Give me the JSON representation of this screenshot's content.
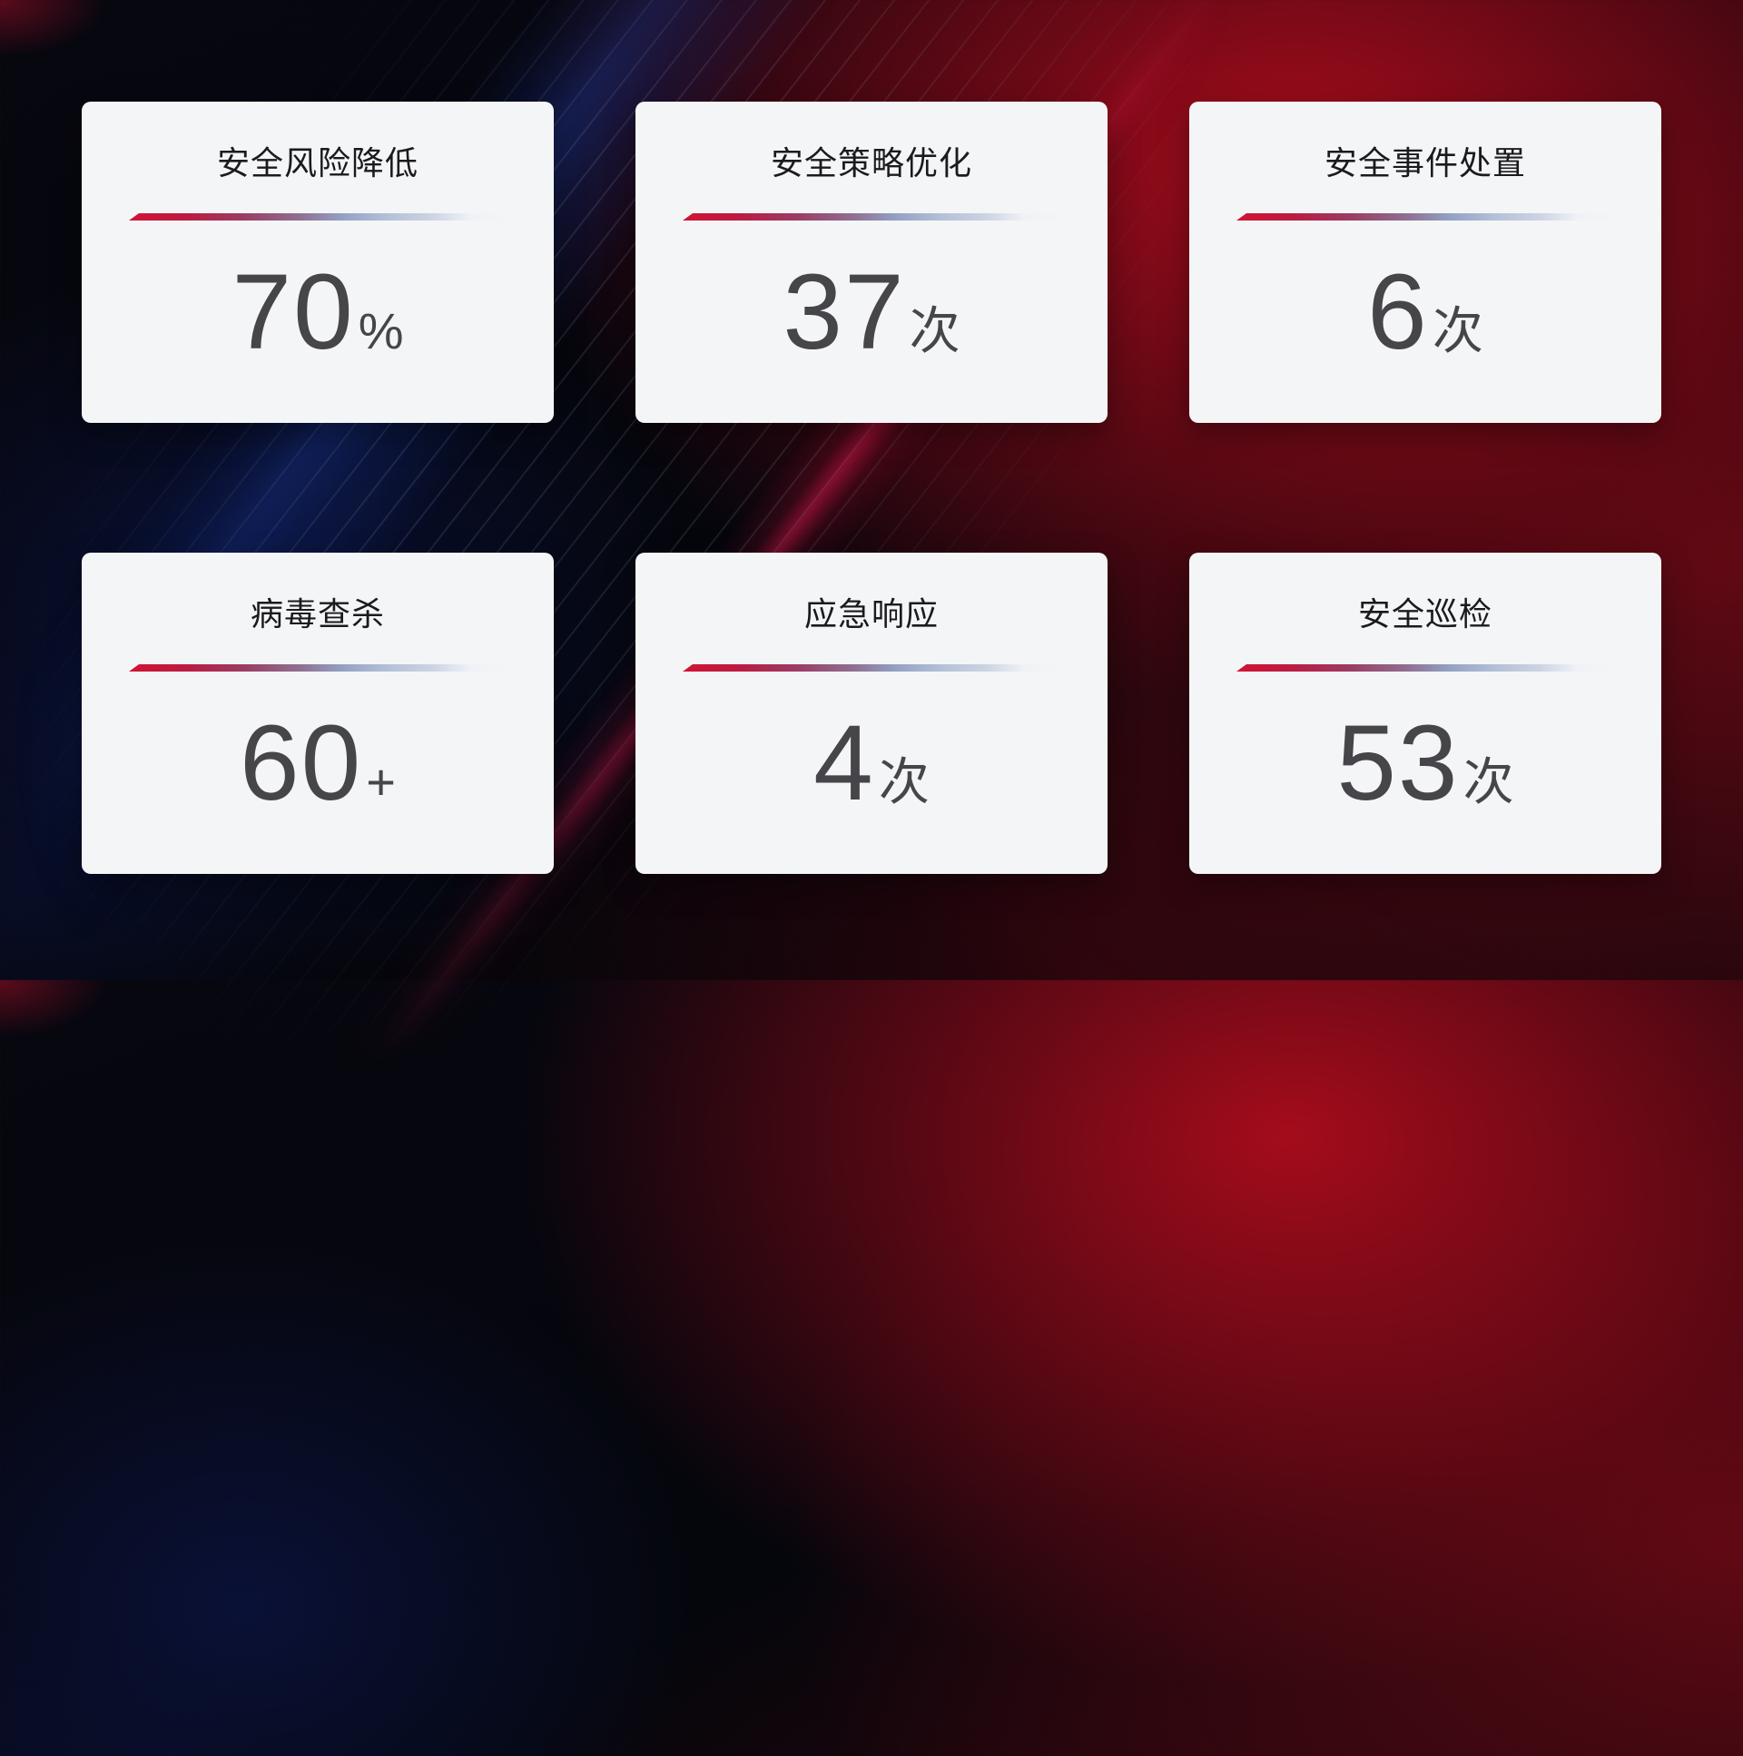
{
  "cards": [
    {
      "title": "安全风险降低",
      "value": "70",
      "unit": "%"
    },
    {
      "title": "安全策略优化",
      "value": "37",
      "unit": "次"
    },
    {
      "title": "安全事件处置",
      "value": "6",
      "unit": "次"
    },
    {
      "title": "病毒查杀",
      "value": "60",
      "unit": "+"
    },
    {
      "title": "应急响应",
      "value": "4",
      "unit": "次"
    },
    {
      "title": "安全巡检",
      "value": "53",
      "unit": "次"
    }
  ],
  "colors": {
    "card_background": "#f4f5f7",
    "title_text": "#1b1b1f",
    "value_text": "#45454a",
    "divider_red": "#d11335",
    "divider_steel_blue": "#b3c0d8",
    "background_dark_navy": "#05060d",
    "background_red_glow": "#ac0c1c",
    "background_blue_band": "#1c3eaa",
    "background_crimson_streak": "#e1164b"
  }
}
